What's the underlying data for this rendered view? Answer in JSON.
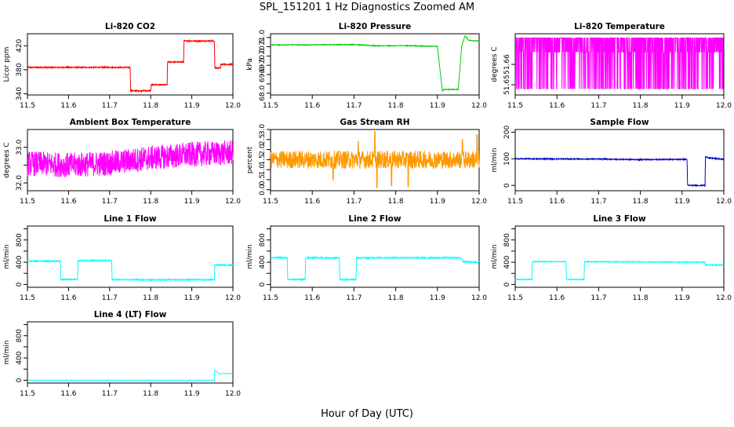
{
  "figure": {
    "title": "SPL_151201 1 Hz Diagnostics Zoomed AM",
    "xlabel": "Hour of Day (UTC)"
  },
  "chart_data": [
    {
      "type": "line",
      "title": "Li-820 CO2",
      "ylabel": "Licor ppm",
      "color": "#ff0000",
      "xlim": [
        11.5,
        12.0
      ],
      "ylim": [
        338,
        440
      ],
      "xticks": [
        11.5,
        11.6,
        11.7,
        11.8,
        11.9,
        12.0
      ],
      "xtick_labels": [
        "11.5",
        "11.6",
        "11.7",
        "11.8",
        "11.9",
        "12.0"
      ],
      "yticks": [
        340,
        380,
        420
      ],
      "ytick_labels": [
        "340",
        "380",
        "420"
      ],
      "noise": 1,
      "x": [
        11.5,
        11.75,
        11.751,
        11.8,
        11.801,
        11.84,
        11.841,
        11.88,
        11.881,
        11.955,
        11.956,
        11.97,
        11.971,
        12.0
      ],
      "y": [
        384,
        384,
        345,
        345,
        355,
        355,
        393,
        393,
        428,
        428,
        383,
        383,
        389,
        389
      ]
    },
    {
      "type": "line",
      "title": "Li-820 Pressure",
      "ylabel": "kPa",
      "color": "#00cc00",
      "xlim": [
        11.5,
        12.0
      ],
      "ylim": [
        67.9,
        71.2
      ],
      "xticks": [
        11.5,
        11.6,
        11.7,
        11.8,
        11.9,
        12.0
      ],
      "xtick_labels": [
        "11.5",
        "11.6",
        "11.7",
        "11.8",
        "11.9",
        "12.0"
      ],
      "yticks": [
        68.0,
        68.5,
        69.0,
        69.5,
        70.0,
        70.5,
        71.0
      ],
      "ytick_labels": [
        "68.0",
        "",
        "69.0",
        "69.5",
        "70.0",
        "70.5",
        "71.0"
      ],
      "noise": 0.02,
      "x": [
        11.5,
        11.6,
        11.7,
        11.75,
        11.8,
        11.82,
        11.9,
        11.912,
        11.915,
        11.95,
        11.958,
        11.966,
        11.975,
        12.0
      ],
      "y": [
        70.6,
        70.6,
        70.62,
        70.55,
        70.55,
        70.56,
        70.52,
        68.1,
        68.2,
        68.2,
        70.5,
        71.1,
        70.85,
        70.8
      ]
    },
    {
      "type": "line",
      "title": "Li-820 Temperature",
      "ylabel": "degrees C",
      "color": "#ff00ff",
      "xlim": [
        11.5,
        12.0
      ],
      "ylim": [
        51.645,
        51.675
      ],
      "xticks": [
        11.5,
        11.6,
        11.7,
        11.8,
        11.9,
        12.0
      ],
      "xtick_labels": [
        "11.5",
        "11.6",
        "11.7",
        "11.8",
        "11.9",
        "12.0"
      ],
      "yticks": [
        51.65,
        51.66
      ],
      "ytick_labels": [
        "51.65",
        "51.66"
      ],
      "levels": [
        51.648,
        51.673
      ],
      "base": 51.666,
      "x": [
        11.5,
        12.0
      ],
      "y": [
        51.648,
        51.673
      ]
    },
    {
      "type": "line",
      "title": "Ambient Box Temperature",
      "ylabel": "degrees C",
      "color": "#ff00ff",
      "xlim": [
        11.5,
        12.0
      ],
      "ylim": [
        31.78,
        33.5
      ],
      "xticks": [
        11.5,
        11.6,
        11.7,
        11.8,
        11.9,
        12.0
      ],
      "xtick_labels": [
        "11.5",
        "11.6",
        "11.7",
        "11.8",
        "11.9",
        "12.0"
      ],
      "yticks": [
        32.0,
        32.5,
        33.0
      ],
      "ytick_labels": [
        "32.0",
        "",
        "33.0"
      ],
      "noise": 0.35,
      "x": [
        11.5,
        11.6,
        11.7,
        11.8,
        11.9,
        12.0
      ],
      "y": [
        32.55,
        32.5,
        32.55,
        32.7,
        32.8,
        32.85
      ]
    },
    {
      "type": "line",
      "title": "Gas Stream RH",
      "ylabel": "percent",
      "color": "#ff9900",
      "xlim": [
        11.5,
        12.0
      ],
      "ylim": [
        -0.05,
        3.0
      ],
      "xticks": [
        11.5,
        11.6,
        11.7,
        11.8,
        11.9,
        12.0
      ],
      "xtick_labels": [
        "11.5",
        "11.6",
        "11.7",
        "11.8",
        "11.9",
        "12.0"
      ],
      "yticks": [
        0.0,
        0.5,
        1.0,
        1.5,
        2.0,
        2.5,
        3.0
      ],
      "ytick_labels": [
        "0.0",
        "0.5",
        "1.0",
        "1.5",
        "2.0",
        "2.5",
        "3.0"
      ],
      "noise": 0.45,
      "x": [
        11.5,
        12.0
      ],
      "y": [
        1.5,
        1.5
      ],
      "spikes": [
        [
          11.65,
          0.5
        ],
        [
          11.71,
          2.4
        ],
        [
          11.75,
          2.9
        ],
        [
          11.755,
          0.1
        ],
        [
          11.79,
          0.2
        ],
        [
          11.83,
          0.15
        ],
        [
          11.96,
          2.5
        ],
        [
          11.995,
          2.75
        ]
      ]
    },
    {
      "type": "line",
      "title": "Sample Flow",
      "ylabel": "ml/min",
      "color": "#0000cc",
      "xlim": [
        11.5,
        12.0
      ],
      "ylim": [
        -20,
        210
      ],
      "xticks": [
        11.5,
        11.6,
        11.7,
        11.8,
        11.9,
        12.0
      ],
      "xtick_labels": [
        "11.5",
        "11.6",
        "11.7",
        "11.8",
        "11.9",
        "12.0"
      ],
      "yticks": [
        0,
        100,
        200
      ],
      "ytick_labels": [
        "0",
        "100",
        "200"
      ],
      "noise": 2,
      "x": [
        11.5,
        11.7,
        11.8,
        11.912,
        11.913,
        11.955,
        11.956,
        11.965,
        12.0
      ],
      "y": [
        100,
        99,
        97,
        98,
        0,
        0,
        108,
        103,
        98
      ]
    },
    {
      "type": "line",
      "title": "Line 1 Flow",
      "ylabel": "ml/min",
      "color": "#00ffff",
      "xlim": [
        11.5,
        12.0
      ],
      "ylim": [
        -50,
        1050
      ],
      "xticks": [
        11.5,
        11.6,
        11.7,
        11.8,
        11.9,
        12.0
      ],
      "xtick_labels": [
        "11.5",
        "11.6",
        "11.7",
        "11.8",
        "11.9",
        "12.0"
      ],
      "yticks": [
        0,
        200,
        400,
        600,
        800,
        1000
      ],
      "ytick_labels": [
        "0",
        "",
        "400",
        "",
        "800",
        ""
      ],
      "noise": 10,
      "x": [
        11.5,
        11.58,
        11.581,
        11.622,
        11.623,
        11.705,
        11.706,
        11.955,
        11.956,
        12.0
      ],
      "y": [
        420,
        420,
        90,
        90,
        430,
        430,
        85,
        85,
        350,
        350
      ]
    },
    {
      "type": "line",
      "title": "Line 2 Flow",
      "ylabel": "ml/min",
      "color": "#00ffff",
      "xlim": [
        11.5,
        12.0
      ],
      "ylim": [
        -50,
        1050
      ],
      "xticks": [
        11.5,
        11.6,
        11.7,
        11.8,
        11.9,
        12.0
      ],
      "xtick_labels": [
        "11.5",
        "11.6",
        "11.7",
        "11.8",
        "11.9",
        "12.0"
      ],
      "yticks": [
        0,
        200,
        400,
        600,
        800,
        1000
      ],
      "ytick_labels": [
        "0",
        "",
        "400",
        "",
        "800",
        ""
      ],
      "noise": 12,
      "x": [
        11.5,
        11.54,
        11.541,
        11.583,
        11.584,
        11.665,
        11.666,
        11.705,
        11.706,
        11.955,
        11.962,
        12.0
      ],
      "y": [
        480,
        480,
        90,
        90,
        480,
        480,
        90,
        90,
        480,
        480,
        410,
        400
      ]
    },
    {
      "type": "line",
      "title": "Line 3 Flow",
      "ylabel": "ml/min",
      "color": "#00ffff",
      "xlim": [
        11.5,
        12.0
      ],
      "ylim": [
        -50,
        1050
      ],
      "xticks": [
        11.5,
        11.6,
        11.7,
        11.8,
        11.9,
        12.0
      ],
      "xtick_labels": [
        "11.5",
        "11.6",
        "11.7",
        "11.8",
        "11.9",
        "12.0"
      ],
      "yticks": [
        0,
        200,
        400,
        600,
        800,
        1000
      ],
      "ytick_labels": [
        "0",
        "",
        "400",
        "",
        "800",
        ""
      ],
      "noise": 8,
      "x": [
        11.5,
        11.54,
        11.541,
        11.622,
        11.623,
        11.665,
        11.666,
        11.955,
        11.956,
        12.0
      ],
      "y": [
        90,
        90,
        410,
        410,
        90,
        90,
        410,
        400,
        350,
        350
      ]
    },
    {
      "type": "line",
      "title": "Line 4 (LT) Flow",
      "ylabel": "ml/min",
      "color": "#00ffff",
      "xlim": [
        11.5,
        12.0
      ],
      "ylim": [
        -50,
        1050
      ],
      "xticks": [
        11.5,
        11.6,
        11.7,
        11.8,
        11.9,
        12.0
      ],
      "xtick_labels": [
        "11.5",
        "11.6",
        "11.7",
        "11.8",
        "11.9",
        "12.0"
      ],
      "yticks": [
        0,
        200,
        400,
        600,
        800,
        1000
      ],
      "ytick_labels": [
        "0",
        "",
        "400",
        "",
        "800",
        ""
      ],
      "noise": 2,
      "x": [
        11.5,
        11.955,
        11.956,
        11.965,
        12.0
      ],
      "y": [
        0,
        0,
        180,
        120,
        120
      ]
    }
  ]
}
